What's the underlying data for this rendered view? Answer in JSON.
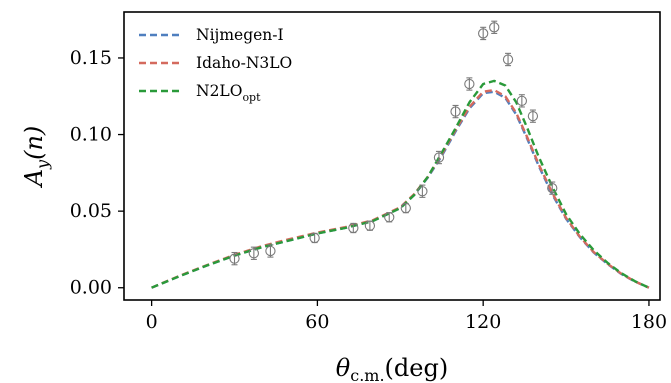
{
  "chart_data": {
    "type": "line",
    "x_axis": {
      "label_main": "θ",
      "label_sub": "c.m.",
      "label_unit": "(deg)",
      "range": [
        -10,
        184
      ],
      "ticks": [
        0,
        60,
        120,
        180
      ],
      "tick_labels": [
        "0",
        "60",
        "120",
        "180"
      ]
    },
    "y_axis": {
      "label_main": "A",
      "label_sub": "y",
      "label_arg": "(n)",
      "range": [
        -0.008,
        0.18
      ],
      "ticks": [
        0.0,
        0.05,
        0.1,
        0.15
      ],
      "tick_labels": [
        "0.00",
        "0.05",
        "0.10",
        "0.15"
      ]
    },
    "grid": false,
    "legend_position": "top-left",
    "series": [
      {
        "name": "Nijmegen-I",
        "color": "#4f7fbf",
        "style": "dashed",
        "x": [
          0,
          10,
          20,
          30,
          40,
          50,
          60,
          70,
          80,
          90,
          95,
          100,
          105,
          110,
          115,
          120,
          124,
          128,
          132,
          136,
          140,
          145,
          150,
          155,
          160,
          165,
          170,
          175,
          180
        ],
        "y": [
          0.0,
          0.0075,
          0.0145,
          0.021,
          0.0265,
          0.031,
          0.0355,
          0.039,
          0.0435,
          0.052,
          0.0605,
          0.072,
          0.086,
          0.102,
          0.117,
          0.127,
          0.128,
          0.124,
          0.113,
          0.097,
          0.08,
          0.061,
          0.045,
          0.033,
          0.023,
          0.0155,
          0.009,
          0.004,
          0.0
        ]
      },
      {
        "name": "Idaho-N3LO",
        "color": "#d46a5e",
        "style": "dashed",
        "x": [
          0,
          10,
          20,
          30,
          40,
          50,
          60,
          70,
          80,
          90,
          95,
          100,
          105,
          110,
          115,
          120,
          124,
          128,
          132,
          136,
          140,
          145,
          150,
          155,
          160,
          165,
          170,
          175,
          180
        ],
        "y": [
          0.0,
          0.0077,
          0.0148,
          0.0215,
          0.0272,
          0.0318,
          0.036,
          0.0395,
          0.044,
          0.0525,
          0.061,
          0.0725,
          0.087,
          0.103,
          0.118,
          0.128,
          0.129,
          0.125,
          0.114,
          0.098,
          0.081,
          0.062,
          0.0455,
          0.0333,
          0.0233,
          0.0157,
          0.0092,
          0.0041,
          0.0
        ]
      },
      {
        "name": "N2LO",
        "name_sub": "opt",
        "color": "#2a9a3a",
        "style": "dashed",
        "x": [
          0,
          10,
          20,
          30,
          40,
          50,
          60,
          70,
          80,
          90,
          95,
          100,
          105,
          110,
          115,
          120,
          124,
          128,
          132,
          136,
          140,
          145,
          150,
          155,
          160,
          165,
          170,
          175,
          180
        ],
        "y": [
          0.0,
          0.0075,
          0.0145,
          0.021,
          0.0265,
          0.031,
          0.0355,
          0.039,
          0.0435,
          0.052,
          0.0605,
          0.0725,
          0.088,
          0.104,
          0.121,
          0.133,
          0.135,
          0.132,
          0.121,
          0.104,
          0.086,
          0.066,
          0.048,
          0.035,
          0.0245,
          0.0163,
          0.0095,
          0.0042,
          0.0
        ]
      },
      {
        "type": "scatter",
        "color": "#7a7a7a",
        "marker": "open-circle-errorbar",
        "x": [
          30,
          37,
          43,
          59,
          73,
          79,
          86,
          92,
          98,
          104,
          110,
          115,
          120,
          124,
          129,
          134,
          138,
          145
        ],
        "y": [
          0.019,
          0.0225,
          0.024,
          0.0325,
          0.039,
          0.0405,
          0.046,
          0.052,
          0.063,
          0.085,
          0.115,
          0.133,
          0.166,
          0.17,
          0.149,
          0.122,
          0.112,
          0.065
        ],
        "err": [
          0.004,
          0.004,
          0.004,
          0.003,
          0.003,
          0.003,
          0.003,
          0.003,
          0.004,
          0.004,
          0.004,
          0.004,
          0.004,
          0.004,
          0.004,
          0.004,
          0.004,
          0.004
        ]
      }
    ]
  }
}
